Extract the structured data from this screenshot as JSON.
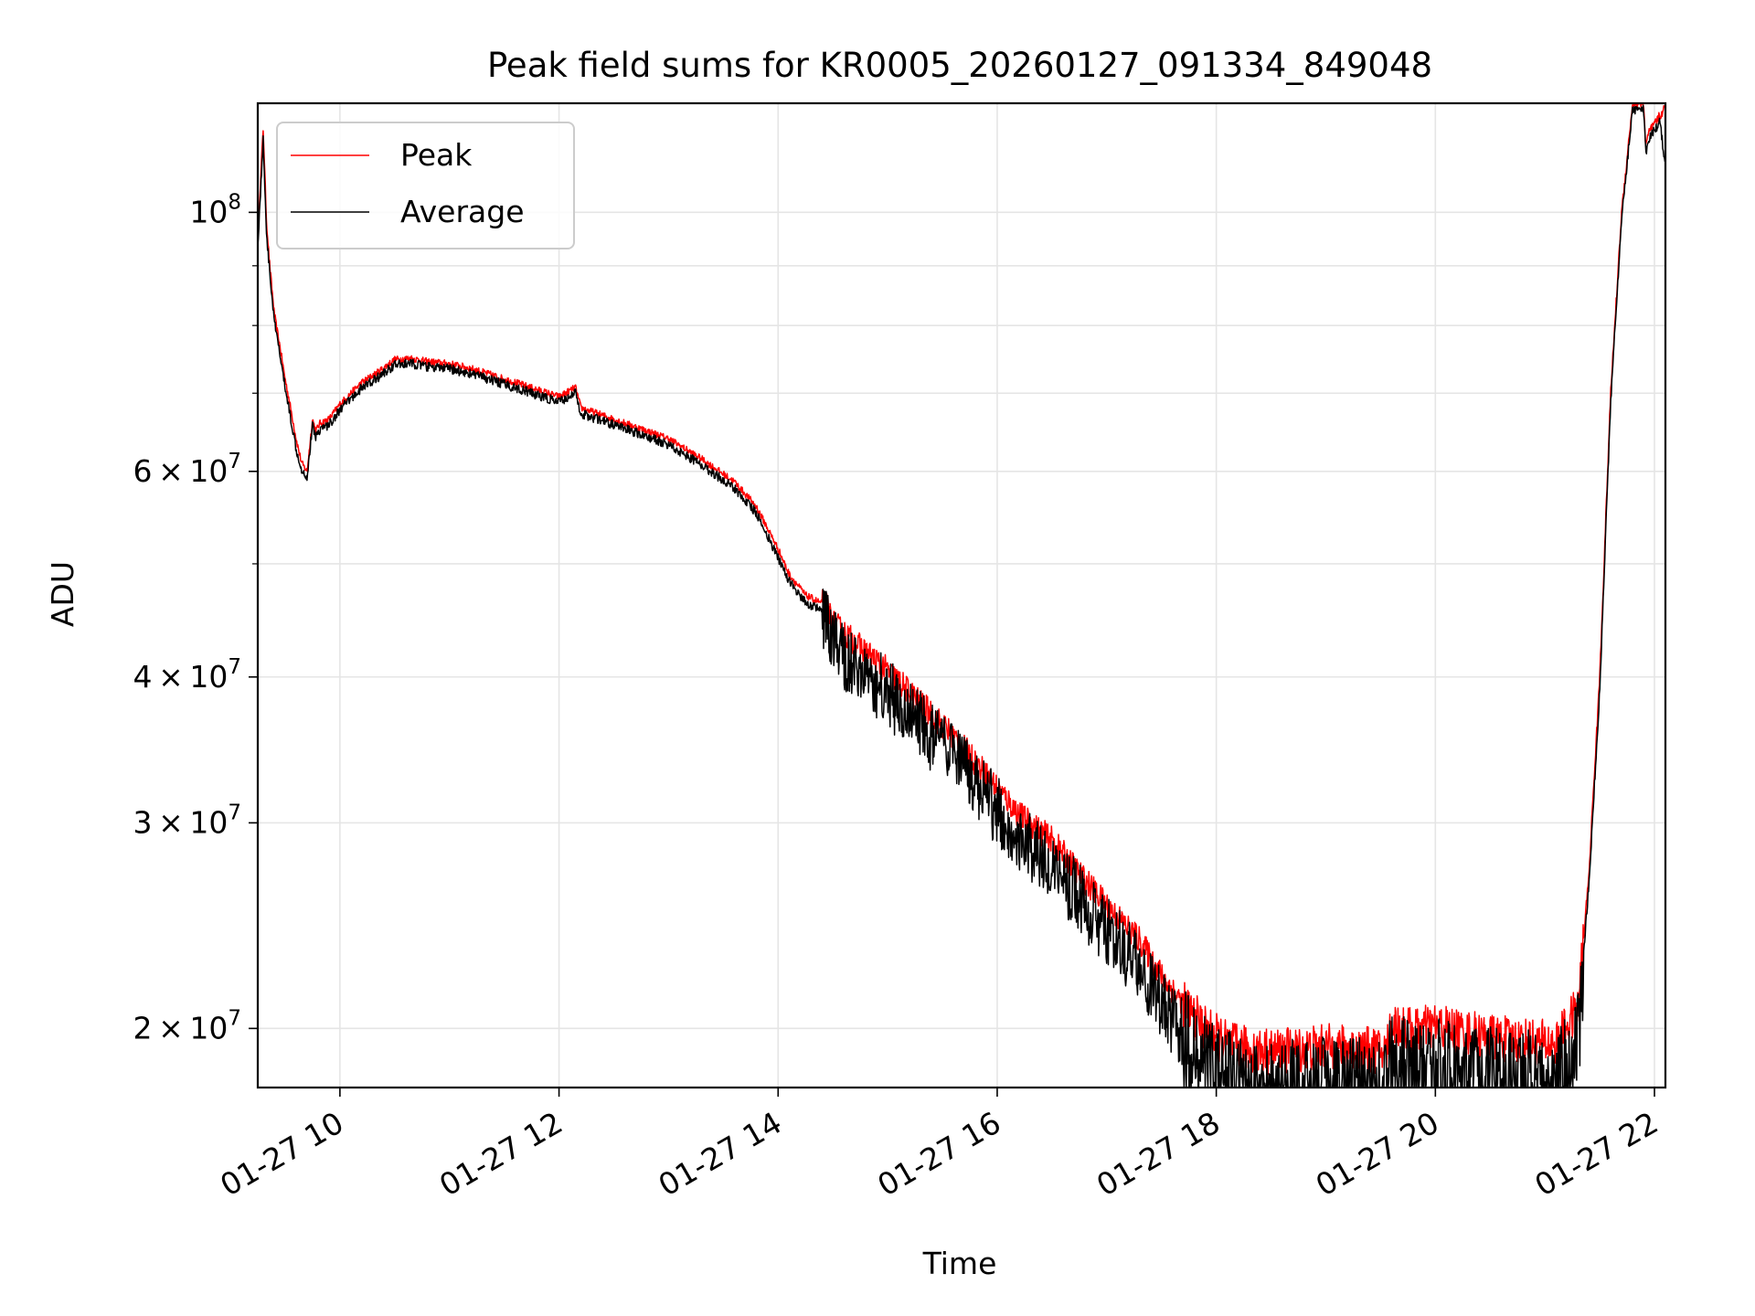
{
  "chart_data": {
    "type": "line",
    "title": "Peak field sums for KR0005_20260127_091334_849048",
    "xlabel": "Time",
    "ylabel": "ADU",
    "yscale": "log",
    "grid": true,
    "legend_position": "top-left",
    "xlim_hours": [
      9.25,
      22.1
    ],
    "ylim": [
      17800000,
      124000000
    ],
    "x_ticks": [
      {
        "hour": 10,
        "label": "01-27 10"
      },
      {
        "hour": 12,
        "label": "01-27 12"
      },
      {
        "hour": 14,
        "label": "01-27 14"
      },
      {
        "hour": 16,
        "label": "01-27 16"
      },
      {
        "hour": 18,
        "label": "01-27 18"
      },
      {
        "hour": 20,
        "label": "01-27 20"
      },
      {
        "hour": 22,
        "label": "01-27 22"
      }
    ],
    "y_major_ticks": [
      {
        "value": 100000000,
        "mantissa": "",
        "exponent": "8"
      },
      {
        "value": 60000000,
        "mantissa": "6",
        "exponent": "7"
      },
      {
        "value": 40000000,
        "mantissa": "4",
        "exponent": "7"
      },
      {
        "value": 30000000,
        "mantissa": "3",
        "exponent": "7"
      },
      {
        "value": 20000000,
        "mantissa": "2",
        "exponent": "7"
      }
    ],
    "y_minor_ticks": [
      50000000,
      70000000,
      80000000,
      90000000
    ],
    "series": [
      {
        "name": "Peak",
        "color": "#ff0000",
        "x_hours": [
          9.25,
          9.3,
          9.33,
          9.36,
          9.4,
          9.45,
          9.5,
          9.55,
          9.6,
          9.65,
          9.7,
          9.75,
          9.78,
          9.82,
          9.9,
          10.0,
          10.1,
          10.2,
          10.35,
          10.5,
          10.65,
          10.8,
          11.0,
          11.2,
          11.4,
          11.6,
          11.8,
          12.0,
          12.15,
          12.2,
          12.3,
          12.5,
          12.8,
          13.0,
          13.3,
          13.6,
          13.8,
          14.0,
          14.1,
          14.25,
          14.45,
          14.5,
          14.8,
          15.0,
          15.3,
          15.6,
          15.9,
          16.2,
          16.5,
          16.8,
          17.0,
          17.3,
          17.5,
          17.7,
          17.9,
          18.1,
          18.3,
          18.5,
          18.8,
          19.0,
          19.3,
          19.55,
          19.6,
          19.8,
          20.0,
          20.3,
          20.6,
          20.9,
          21.1,
          21.3,
          21.4,
          21.5,
          21.6,
          21.7,
          21.8,
          21.9,
          21.92,
          21.95,
          22.0,
          22.05,
          22.1
        ],
        "values": [
          96000000,
          118000000,
          98000000,
          90000000,
          82000000,
          77000000,
          72000000,
          68000000,
          64000000,
          61000000,
          60000000,
          66500000,
          65000000,
          66000000,
          66500000,
          68500000,
          70000000,
          71500000,
          73000000,
          74800000,
          75000000,
          74500000,
          74200000,
          73500000,
          72500000,
          71500000,
          70500000,
          69500000,
          70800000,
          68000000,
          67500000,
          66500000,
          65000000,
          64000000,
          61500000,
          58800000,
          56000000,
          51500000,
          49000000,
          47000000,
          46000000,
          44500000,
          42000000,
          40500000,
          38000000,
          35600000,
          33000000,
          30500000,
          29000000,
          26800000,
          25500000,
          23800000,
          22200000,
          21000000,
          20000000,
          19400000,
          19200000,
          19100000,
          19200000,
          19300000,
          19200000,
          19100000,
          20200000,
          19900000,
          20100000,
          19800000,
          19600000,
          19500000,
          19400000,
          20800000,
          27000000,
          40000000,
          70000000,
          100000000,
          124000000,
          124000000,
          114000000,
          117000000,
          119000000,
          121000000,
          123000000
        ]
      },
      {
        "name": "Average",
        "color": "#000000",
        "x_hours": [
          9.25,
          9.3,
          9.33,
          9.36,
          9.4,
          9.45,
          9.5,
          9.55,
          9.6,
          9.65,
          9.7,
          9.75,
          9.78,
          9.82,
          9.9,
          10.0,
          10.1,
          10.2,
          10.35,
          10.5,
          10.65,
          10.8,
          11.0,
          11.2,
          11.4,
          11.6,
          11.8,
          12.0,
          12.15,
          12.2,
          12.3,
          12.5,
          12.8,
          13.0,
          13.3,
          13.6,
          13.8,
          14.0,
          14.1,
          14.25,
          14.45,
          14.5,
          14.8,
          15.0,
          15.3,
          15.6,
          15.9,
          16.2,
          16.5,
          16.8,
          17.0,
          17.3,
          17.5,
          17.7,
          17.9,
          18.1,
          18.3,
          18.5,
          18.8,
          19.0,
          19.3,
          19.55,
          19.6,
          19.8,
          20.0,
          20.3,
          20.6,
          20.9,
          21.1,
          21.3,
          21.4,
          21.5,
          21.6,
          21.7,
          21.8,
          21.9,
          21.92,
          21.95,
          22.0,
          22.05,
          22.1
        ],
        "values": [
          94000000,
          116000000,
          96000000,
          89000000,
          81000000,
          76000000,
          71000000,
          67000000,
          63000000,
          60500000,
          59500000,
          66000000,
          64500000,
          65500000,
          66000000,
          68000000,
          69500000,
          71000000,
          72500000,
          74300000,
          74500000,
          74000000,
          73700000,
          73000000,
          72000000,
          71000000,
          70000000,
          69000000,
          70300000,
          67500000,
          67000000,
          66000000,
          64500000,
          63500000,
          61000000,
          58300000,
          55500000,
          50800000,
          48500000,
          46500000,
          45500000,
          43800000,
          41300000,
          39800000,
          37300000,
          35000000,
          32400000,
          30000000,
          28400000,
          26200000,
          24900000,
          23200000,
          21600000,
          20300000,
          19300000,
          18700000,
          18400000,
          18300000,
          18400000,
          18500000,
          18400000,
          18200000,
          19300000,
          19000000,
          19200000,
          18900000,
          18700000,
          18600000,
          18400000,
          20000000,
          26500000,
          39000000,
          69000000,
          99000000,
          123000000,
          123000000,
          113000000,
          116000000,
          118000000,
          120000000,
          110000000
        ]
      }
    ]
  }
}
